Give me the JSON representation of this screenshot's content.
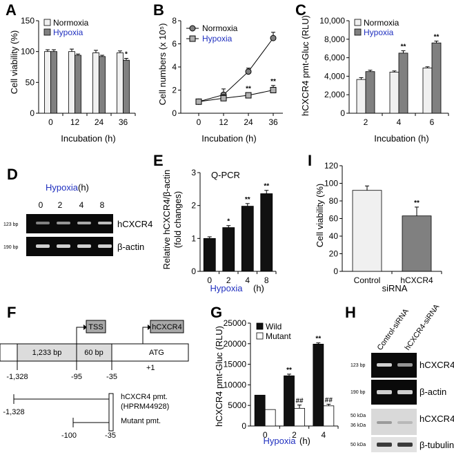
{
  "colors": {
    "light_bar": "#f0f0f0",
    "gray_bar": "#808080",
    "black_bar": "#111111",
    "blue_text": "#1f2fbf",
    "gel_bg": "#0a0a0a",
    "band": "#d0d0d0",
    "promoter_fill": "#dcdcdc",
    "tss_box": "#a8a8a8"
  },
  "panels": {
    "A": {
      "letter": "A",
      "ylabel": "Cell viability (%)",
      "xlabel": "Incubation (h)",
      "legend": [
        "Normoxia",
        "Hypoxia"
      ]
    },
    "B": {
      "letter": "B",
      "ylabel": "Cell numbers (x 10⁵)",
      "xlabel": "Incubation (h)",
      "legend": [
        "Normoxia",
        "Hypoxia"
      ]
    },
    "C": {
      "letter": "C",
      "ylabel": "hCXCR4 pmt-Gluc (RLU)",
      "xlabel": "Incubation (h)",
      "legend": [
        "Normoxia",
        "Hypoxia"
      ]
    },
    "D": {
      "letter": "D",
      "header": "Hypoxia",
      "header_unit": "(h)",
      "lanes": [
        "0",
        "2",
        "4",
        "8"
      ],
      "bands": [
        {
          "size": "123 bp",
          "label": "hCXCR4"
        },
        {
          "size": "190 bp",
          "label": "β-actin"
        }
      ]
    },
    "E": {
      "letter": "E",
      "ylabel_1": "Relative hCXCR4/β-actin",
      "ylabel_2": "(fold changes)",
      "inset": "Q-PCR",
      "xlabel": "Hypoxia",
      "xlabel_unit": "(h)"
    },
    "F": {
      "letter": "F",
      "tss": "TSS",
      "gene_box": "hCXCR4",
      "seg1": "1,233 bp",
      "seg2": "60 bp",
      "atg": "ATG",
      "plus1": "+1",
      "positions": [
        "-1,328",
        "-95",
        "-35"
      ],
      "pmt_label_1": "hCXCR4 pmt.",
      "pmt_label_2": "(HPRM44928)",
      "pmt_start": "-1,328",
      "mutant_label": "Mutant pmt.",
      "mutant_start": "-100",
      "mutant_end": "-35"
    },
    "G": {
      "letter": "G",
      "ylabel": "hCXCR4 pmt-Gluc (RLU)",
      "xlabel": "Hypoxia",
      "xlabel_unit": "(h)",
      "legend": [
        "Wild",
        "Mutant"
      ]
    },
    "H": {
      "letter": "H",
      "lanes": [
        "Control-siRNA",
        "hCXCR4-siRNA"
      ],
      "bands": [
        {
          "size": "123 bp",
          "label": "hCXCR4"
        },
        {
          "size": "190 bp",
          "label": "β-actin"
        },
        {
          "size": "50 kDa",
          "size2": "36 kDa",
          "label": "hCXCR4"
        },
        {
          "size": "50 kDa",
          "label": "β-tubulin"
        }
      ]
    },
    "I": {
      "letter": "I",
      "ylabel": "Cell viability (%)",
      "xlabel": "siRNA"
    }
  },
  "chart_data": [
    {
      "panel": "A",
      "type": "bar",
      "categories": [
        "0",
        "12",
        "24",
        "36"
      ],
      "series": [
        {
          "name": "Normoxia",
          "values": [
            100,
            100,
            98,
            98
          ],
          "errors": [
            3,
            4,
            4,
            3
          ]
        },
        {
          "name": "Hypoxia",
          "values": [
            100,
            94,
            92,
            86
          ],
          "errors": [
            3,
            2,
            2,
            3
          ]
        }
      ],
      "significance": [
        {
          "series": 1,
          "index": 3,
          "mark": "*"
        }
      ],
      "ylim": [
        0,
        150
      ],
      "yticks": [
        0,
        50,
        100,
        150
      ]
    },
    {
      "panel": "B",
      "type": "line",
      "x": [
        "0",
        "12",
        "24",
        "36"
      ],
      "series": [
        {
          "name": "Normoxia",
          "values": [
            1.0,
            1.6,
            3.6,
            6.5
          ],
          "errors": [
            0.2,
            0.5,
            0.3,
            0.5
          ]
        },
        {
          "name": "Hypoxia",
          "values": [
            1.0,
            1.3,
            1.55,
            2.0
          ],
          "errors": [
            0.2,
            0.3,
            0.2,
            0.4
          ]
        }
      ],
      "significance": [
        {
          "series": 1,
          "index": 2,
          "mark": "**"
        },
        {
          "series": 1,
          "index": 3,
          "mark": "**"
        }
      ],
      "ylim": [
        0,
        8
      ],
      "yticks": [
        0,
        2,
        4,
        6,
        8
      ]
    },
    {
      "panel": "C",
      "type": "bar",
      "categories": [
        "2",
        "4",
        "6"
      ],
      "series": [
        {
          "name": "Normoxia",
          "values": [
            3650,
            4450,
            4900
          ],
          "errors": [
            200,
            120,
            120
          ]
        },
        {
          "name": "Hypoxia",
          "values": [
            4500,
            6500,
            7600
          ],
          "errors": [
            150,
            250,
            200
          ]
        }
      ],
      "significance": [
        {
          "series": 1,
          "index": 1,
          "mark": "**"
        },
        {
          "series": 1,
          "index": 2,
          "mark": "**"
        }
      ],
      "ylim": [
        0,
        10000
      ],
      "yticks": [
        0,
        2000,
        4000,
        6000,
        8000,
        10000
      ],
      "yticklabels": [
        "0",
        "2,000",
        "4,000",
        "6,000",
        "8,000",
        "10,000"
      ]
    },
    {
      "panel": "E",
      "type": "bar",
      "categories": [
        "0",
        "2",
        "4",
        "8"
      ],
      "series": [
        {
          "values": [
            1.0,
            1.33,
            1.98,
            2.36
          ],
          "errors": [
            0.05,
            0.06,
            0.08,
            0.1
          ]
        }
      ],
      "significance": [
        {
          "series": 0,
          "index": 1,
          "mark": "*"
        },
        {
          "series": 0,
          "index": 2,
          "mark": "**"
        },
        {
          "series": 0,
          "index": 3,
          "mark": "**"
        }
      ],
      "ylim": [
        0,
        3
      ],
      "yticks": [
        0,
        1,
        2,
        3
      ]
    },
    {
      "panel": "G",
      "type": "bar",
      "categories": [
        "0",
        "2",
        "4"
      ],
      "series": [
        {
          "name": "Wild",
          "values": [
            7500,
            12200,
            19900
          ],
          "errors": [
            0,
            400,
            300
          ]
        },
        {
          "name": "Mutant",
          "values": [
            4000,
            4300,
            4900
          ],
          "errors": [
            0,
            800,
            400
          ]
        }
      ],
      "significance": [
        {
          "series": 0,
          "index": 1,
          "mark": "**"
        },
        {
          "series": 0,
          "index": 2,
          "mark": "**"
        },
        {
          "series": 1,
          "index": 1,
          "mark": "##"
        },
        {
          "series": 1,
          "index": 2,
          "mark": "##"
        }
      ],
      "ylim": [
        0,
        25000
      ],
      "yticks": [
        0,
        5000,
        10000,
        15000,
        20000,
        25000
      ]
    },
    {
      "panel": "I",
      "type": "bar",
      "categories": [
        "Control",
        "hCXCR4"
      ],
      "series": [
        {
          "values": [
            92,
            63
          ],
          "errors": [
            5,
            10
          ]
        }
      ],
      "significance": [
        {
          "series": 0,
          "index": 1,
          "mark": "**"
        }
      ],
      "ylim": [
        0,
        120
      ],
      "yticks": [
        0,
        20,
        40,
        60,
        80,
        100,
        120
      ]
    }
  ]
}
